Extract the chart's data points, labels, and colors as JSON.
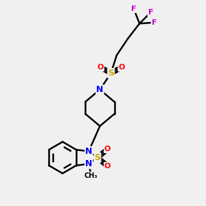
{
  "bg_color": "#f0f0f0",
  "bond_color": "#000000",
  "N_color": "#0000ff",
  "S_color": "#ccaa00",
  "O_color": "#ff0000",
  "F_color": "#cc00cc",
  "figsize": [
    3.0,
    3.0
  ],
  "dpi": 100,
  "xlim": [
    0,
    10
  ],
  "ylim": [
    0,
    10
  ]
}
